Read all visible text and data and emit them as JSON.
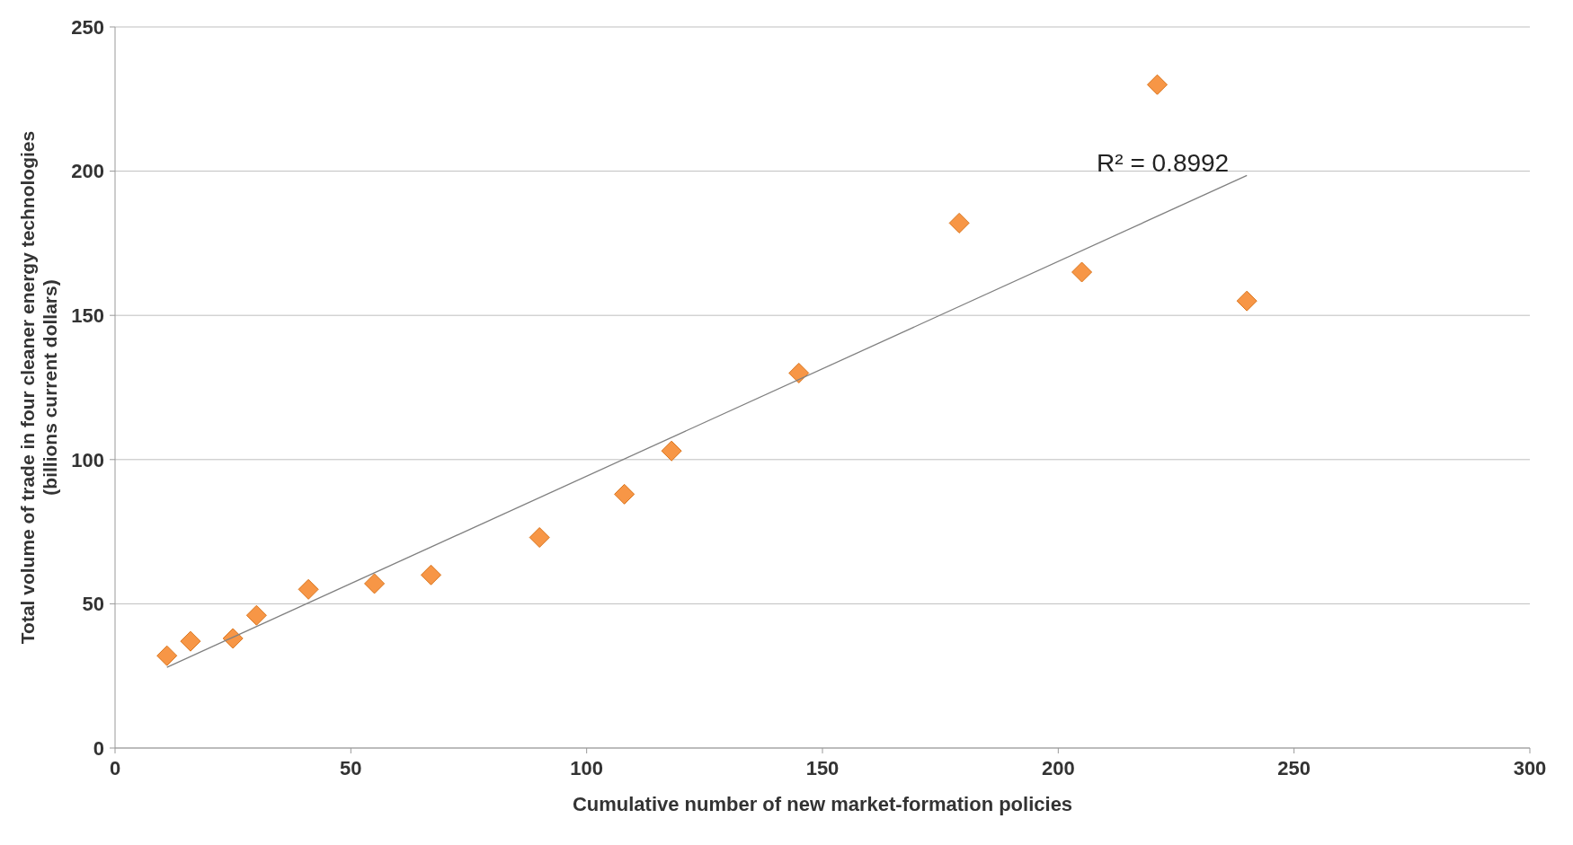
{
  "chart_data": {
    "type": "scatter",
    "xlabel": "Cumulative number of new market-formation policies",
    "ylabel": "Total volume of trade in four cleaner energy technologies (billions current dollars)",
    "xlim": [
      0,
      300
    ],
    "xticks": [
      0,
      50,
      100,
      150,
      200,
      250,
      300
    ],
    "ylim": [
      0,
      250
    ],
    "yticks": [
      0,
      50,
      100,
      150,
      200,
      250
    ],
    "grid": "y",
    "marker": "diamond",
    "annotations": [
      "R² = 0.8992"
    ],
    "series": [
      {
        "color": "#f79646",
        "x": [
          11,
          16,
          25,
          30,
          41,
          55,
          67,
          90,
          108,
          118,
          145,
          179,
          205,
          221,
          240
        ],
        "values": [
          32,
          37,
          38,
          46,
          55,
          57,
          60,
          73,
          88,
          103,
          130,
          182,
          165,
          230,
          155
        ]
      },
      {
        "type": "line",
        "color": "#808080",
        "marker": "none",
        "x": [
          11,
          240
        ],
        "values": [
          28,
          198.5
        ]
      }
    ]
  }
}
